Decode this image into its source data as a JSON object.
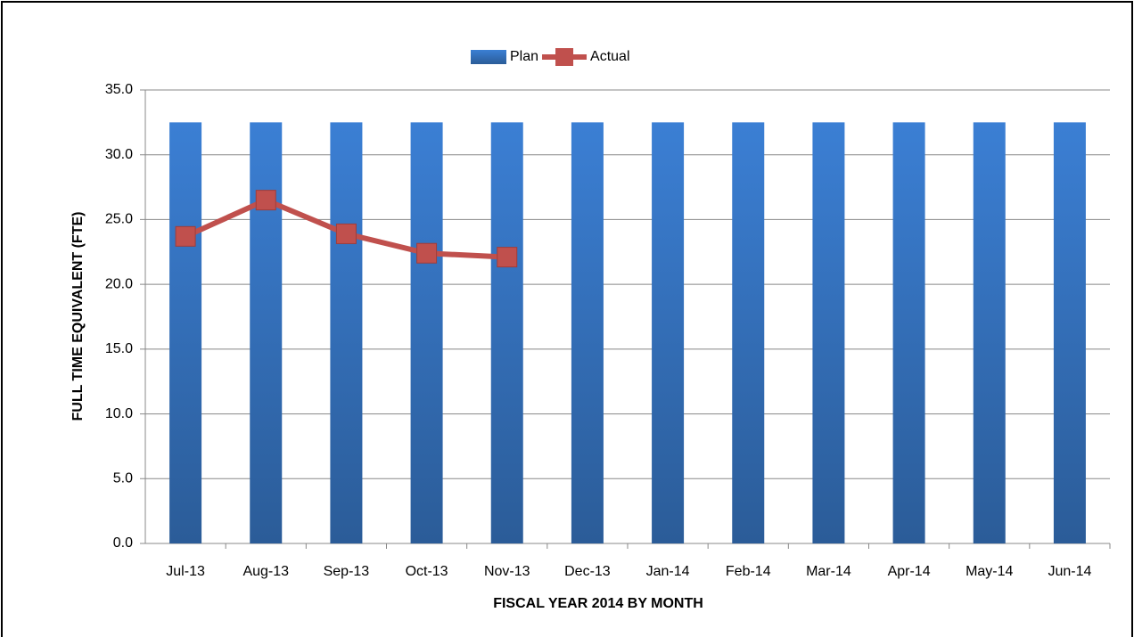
{
  "chart_data": {
    "type": "bar",
    "x_label": "FISCAL YEAR 2014 BY MONTH",
    "y_label": "FULL TIME EQUIVALENT (FTE)",
    "categories": [
      "Jul-13",
      "Aug-13",
      "Sep-13",
      "Oct-13",
      "Nov-13",
      "Dec-13",
      "Jan-14",
      "Feb-14",
      "Mar-14",
      "Apr-14",
      "May-14",
      "Jun-14"
    ],
    "series": [
      {
        "name": "Plan",
        "type": "bar",
        "color": "#3b7dd0",
        "values": [
          32.5,
          32.5,
          32.5,
          32.5,
          32.5,
          32.5,
          32.5,
          32.5,
          32.5,
          32.5,
          32.5,
          32.5
        ]
      },
      {
        "name": "Actual",
        "type": "line",
        "color": "#c0504d",
        "values": [
          23.7,
          26.5,
          23.9,
          22.4,
          22.1,
          null,
          null,
          null,
          null,
          null,
          null,
          null
        ]
      }
    ],
    "ylim": [
      0,
      35
    ],
    "yticks": [
      {
        "value": 0,
        "label": "0.0"
      },
      {
        "value": 5,
        "label": "5.0"
      },
      {
        "value": 10,
        "label": "10.0"
      },
      {
        "value": 15,
        "label": "15.0"
      },
      {
        "value": 20,
        "label": "20.0"
      },
      {
        "value": 25,
        "label": "25.0"
      },
      {
        "value": 30,
        "label": "30.0"
      },
      {
        "value": 35,
        "label": "35.0"
      }
    ],
    "grid": true,
    "legend": "top"
  }
}
